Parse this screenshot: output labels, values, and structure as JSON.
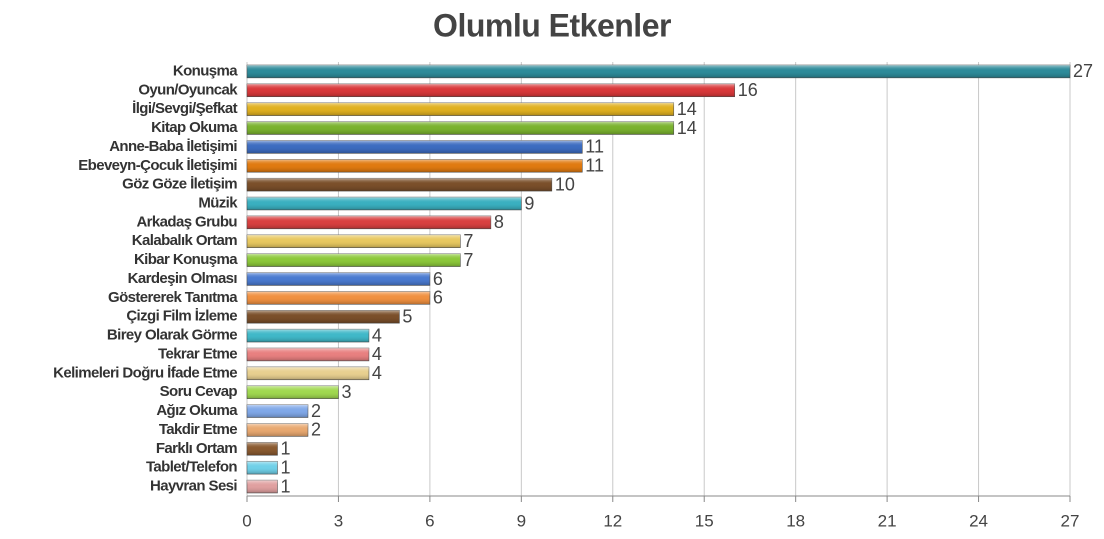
{
  "chart_data": {
    "type": "barh",
    "title": "Olumlu Etkenler",
    "categories": [
      "Konuşma",
      "Oyun/Oyuncak",
      "İlgi/Sevgi/Şefkat",
      "Kitap Okuma",
      "Anne-Baba İletişimi",
      "Ebeveyn-Çocuk İletişimi",
      "Göz Göze İletişim",
      "Müzik",
      "Arkadaş Grubu",
      "Kalabalık Ortam",
      "Kibar Konuşma",
      "Kardeşin Olması",
      "Göstererek Tanıtma",
      "Çizgi Film İzleme",
      "Birey Olarak Görme",
      "Tekrar Etme",
      "Kelimeleri Doğru İfade Etme",
      "Soru Cevap",
      "Ağız Okuma",
      "Takdir Etme",
      "Farklı Ortam",
      "Tablet/Telefon",
      "Hayvran Sesi"
    ],
    "values": [
      27,
      16,
      14,
      14,
      11,
      11,
      10,
      9,
      8,
      7,
      7,
      6,
      6,
      5,
      4,
      4,
      4,
      3,
      2,
      2,
      1,
      1,
      1
    ],
    "colors": [
      "#2e8b9a",
      "#d9383a",
      "#e0b020",
      "#7ab22e",
      "#3d6cc0",
      "#e07a10",
      "#7a4f2a",
      "#3ab0c0",
      "#d94040",
      "#e8c860",
      "#8cc83a",
      "#4a7ad0",
      "#f09040",
      "#7a4f2a",
      "#40b8c8",
      "#e88080",
      "#e8d090",
      "#a0d850",
      "#80a8e8",
      "#e8a870",
      "#8a5a30",
      "#70d0e8",
      "#e0a0a0"
    ],
    "xlim": [
      0,
      27
    ],
    "xticks": [
      0,
      3,
      6,
      9,
      12,
      15,
      18,
      21,
      24,
      27
    ],
    "grid": true
  }
}
